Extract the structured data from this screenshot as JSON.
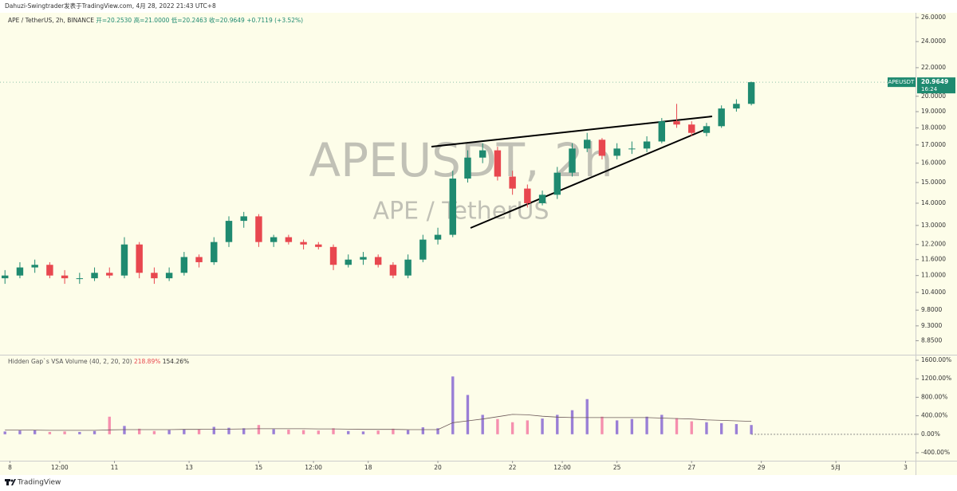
{
  "header": {
    "publisher": "Dahuzi-Swingtrader发表于TradingView.com, 4月 28, 2022 21:43 UTC+8",
    "footer": "TradingView"
  },
  "chart_data": [
    {
      "type": "candlestick",
      "symbol_line": "APE / TetherUS, 2h, BINANCE",
      "ohlc_labels": [
        "开=20.2530",
        "高=21.0000",
        "低=20.2463",
        "收=20.9649"
      ],
      "change_label": "+0.7119 (+3.52%)",
      "watermark": [
        "APEUSDT, 2h",
        "APE / TetherUS"
      ],
      "price_tag": {
        "symbol": "APEUSDT",
        "price": "20.9649",
        "countdown": "16:24"
      },
      "up_color": "#1f8a70",
      "down_color": "#e8474f",
      "log_scale": true,
      "x": [
        1,
        4,
        7,
        10,
        13,
        16,
        19,
        22,
        25,
        28,
        31,
        34,
        37,
        40,
        43,
        46,
        49,
        52,
        55,
        58,
        61,
        64,
        67,
        70,
        73,
        76,
        79,
        82,
        85,
        88,
        91,
        94,
        97,
        100,
        103,
        106,
        109,
        112,
        115,
        118,
        121,
        124,
        127,
        130,
        133,
        136,
        139,
        142,
        145,
        148,
        151
      ],
      "open": [
        10.9,
        11.0,
        11.3,
        11.4,
        11.0,
        10.9,
        10.9,
        11.1,
        11.0,
        12.2,
        11.1,
        10.9,
        11.1,
        11.7,
        11.5,
        12.3,
        13.2,
        13.4,
        12.3,
        12.5,
        12.3,
        12.2,
        12.1,
        11.4,
        11.6,
        11.7,
        11.4,
        11.0,
        11.6,
        12.4,
        12.6,
        15.2,
        16.3,
        16.7,
        15.3,
        14.7,
        14.0,
        14.4,
        15.5,
        16.8,
        17.3,
        16.4,
        16.8,
        16.8,
        17.2,
        18.4,
        18.2,
        17.7,
        18.1,
        19.2,
        19.5
      ],
      "high": [
        11.2,
        11.5,
        11.6,
        11.5,
        11.2,
        11.1,
        11.3,
        11.3,
        12.5,
        12.3,
        11.3,
        11.3,
        11.9,
        11.8,
        12.5,
        13.4,
        13.6,
        13.5,
        12.6,
        12.6,
        12.4,
        12.3,
        12.2,
        11.8,
        11.9,
        11.8,
        11.5,
        11.8,
        12.6,
        12.9,
        15.6,
        16.7,
        17.1,
        16.9,
        15.6,
        14.9,
        14.6,
        15.8,
        17.1,
        17.7,
        17.4,
        17.1,
        17.2,
        17.5,
        18.6,
        19.5,
        18.4,
        18.3,
        19.4,
        19.8,
        21.0
      ],
      "low": [
        10.7,
        10.9,
        11.1,
        10.9,
        10.7,
        10.7,
        10.8,
        10.9,
        10.9,
        10.9,
        10.7,
        10.8,
        11.0,
        11.3,
        11.4,
        12.1,
        12.9,
        12.1,
        12.1,
        12.2,
        12.0,
        12.0,
        11.2,
        11.3,
        11.4,
        11.3,
        10.9,
        10.9,
        11.5,
        12.2,
        12.5,
        15.0,
        16.0,
        15.1,
        14.4,
        13.8,
        13.9,
        14.2,
        15.3,
        16.6,
        16.2,
        16.2,
        16.5,
        16.6,
        17.1,
        18.0,
        17.5,
        17.5,
        18.0,
        19.0,
        19.4
      ],
      "close": [
        11.0,
        11.3,
        11.4,
        11.0,
        10.9,
        10.9,
        11.1,
        11.0,
        12.2,
        11.1,
        10.9,
        11.1,
        11.7,
        11.5,
        12.3,
        13.2,
        13.4,
        12.3,
        12.5,
        12.3,
        12.2,
        12.1,
        11.4,
        11.6,
        11.7,
        11.4,
        11.0,
        11.6,
        12.4,
        12.6,
        15.2,
        16.3,
        16.7,
        15.3,
        14.7,
        14.0,
        14.4,
        15.5,
        16.8,
        17.3,
        16.4,
        16.8,
        16.8,
        17.2,
        18.4,
        18.2,
        17.7,
        18.1,
        19.2,
        19.5,
        20.96
      ],
      "xlim": [
        0,
        184
      ],
      "xticks": [
        {
          "value": 2,
          "label": "8"
        },
        {
          "value": 12,
          "label": "12:00"
        },
        {
          "value": 23,
          "label": "11"
        },
        {
          "value": 38,
          "label": "13"
        },
        {
          "value": 52,
          "label": "15"
        },
        {
          "value": 63,
          "label": "12:00"
        },
        {
          "value": 74,
          "label": "18"
        },
        {
          "value": 88,
          "label": "20"
        },
        {
          "value": 103,
          "label": "22"
        },
        {
          "value": 113,
          "label": "12:00"
        },
        {
          "value": 124,
          "label": "25"
        },
        {
          "value": 139,
          "label": "27"
        },
        {
          "value": 153,
          "label": "29"
        },
        {
          "value": 168,
          "label": "5月"
        },
        {
          "value": 182,
          "label": "3"
        }
      ],
      "ylim": [
        8.47,
        27.57
      ],
      "yticks": [
        {
          "value": 26,
          "label": "26.0000"
        },
        {
          "value": 24,
          "label": "24.0000"
        },
        {
          "value": 22,
          "label": "22.0000"
        },
        {
          "value": 20,
          "label": "20.0000"
        },
        {
          "value": 19,
          "label": "19.0000"
        },
        {
          "value": 18,
          "label": "18.0000"
        },
        {
          "value": 17,
          "label": "17.0000"
        },
        {
          "value": 16,
          "label": "16.0000"
        },
        {
          "value": 15,
          "label": "15.0000"
        },
        {
          "value": 14,
          "label": "14.0000"
        },
        {
          "value": 13,
          "label": "13.0000"
        },
        {
          "value": 12.2,
          "label": "12.2000"
        },
        {
          "value": 11.6,
          "label": "11.6000"
        },
        {
          "value": 11,
          "label": "11.0000"
        },
        {
          "value": 10.4,
          "label": "10.4000"
        },
        {
          "value": 9.8,
          "label": "9.8000"
        },
        {
          "value": 9.3,
          "label": "9.3000"
        },
        {
          "value": 8.85,
          "label": "8.8500"
        }
      ]
    },
    {
      "type": "bar",
      "title": "Hidden Gap`s VSA Volume (40, 2, 20, 20)",
      "legend_values": [
        "218.89%",
        "154.26%"
      ],
      "up_color": "#9a7fd6",
      "down_color": "#f58fae",
      "ma_color": "#6d5a5a",
      "values": [
        60,
        80,
        90,
        50,
        60,
        50,
        70,
        380,
        180,
        120,
        70,
        90,
        110,
        100,
        160,
        140,
        130,
        200,
        110,
        100,
        90,
        80,
        130,
        70,
        60,
        80,
        120,
        90,
        150,
        130,
        1250,
        850,
        420,
        330,
        260,
        300,
        340,
        420,
        520,
        760,
        380,
        300,
        330,
        380,
        420,
        350,
        280,
        260,
        240,
        220,
        200
      ],
      "ma": [
        90,
        90,
        90,
        85,
        85,
        85,
        85,
        95,
        100,
        100,
        100,
        100,
        105,
        105,
        110,
        110,
        115,
        120,
        120,
        120,
        120,
        115,
        115,
        110,
        105,
        105,
        105,
        100,
        100,
        100,
        250,
        290,
        330,
        380,
        430,
        420,
        390,
        370,
        360,
        360,
        360,
        360,
        360,
        360,
        350,
        340,
        330,
        310,
        300,
        290,
        280
      ],
      "ylim": [
        -572,
        1686
      ],
      "yticks": [
        {
          "value": 1600,
          "label": "1600.00%"
        },
        {
          "value": 1200,
          "label": "1200.00%"
        },
        {
          "value": 800,
          "label": "800.00%"
        },
        {
          "value": 400,
          "label": "400.00%"
        },
        {
          "value": 0,
          "label": "0.00%"
        },
        {
          "value": -400,
          "label": "-400.00%"
        }
      ]
    }
  ]
}
